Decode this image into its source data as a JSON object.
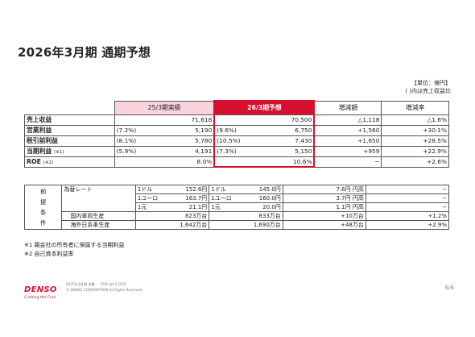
{
  "title": "2026年3月期 通期予想",
  "unit_line1": "【単位：億円】",
  "unit_line2": "( )内は売上収益比",
  "headers": {
    "actual": "25/3期実績",
    "forecast": "26/3期予想",
    "diff": "増減額",
    "rate": "増減率"
  },
  "rows": [
    {
      "label": "売上収益",
      "note": "",
      "a_pct": "",
      "a_val": "71,618",
      "f_pct": "",
      "f_val": "70,500",
      "diff": "△1,118",
      "rate": "△1.6%"
    },
    {
      "label": "営業利益",
      "note": "",
      "a_pct": "(7.2%)",
      "a_val": "5,190",
      "f_pct": "(9.6%)",
      "f_val": "6,750",
      "diff": "+1,560",
      "rate": "+30.1%"
    },
    {
      "label": "税引前利益",
      "note": "",
      "a_pct": "(8.1%)",
      "a_val": "5,780",
      "f_pct": "(10.5%)",
      "f_val": "7,430",
      "diff": "+1,650",
      "rate": "+28.5%"
    },
    {
      "label": "当期利益",
      "note": "(※1)",
      "a_pct": "(5.9%)",
      "a_val": "4,191",
      "f_pct": "(7.3%)",
      "f_val": "5,150",
      "diff": "+959",
      "rate": "+22.9%"
    },
    {
      "label": "ROE",
      "note": "(※2)",
      "a_pct": "",
      "a_val": "8.0%",
      "f_pct": "",
      "f_val": "10.6%",
      "diff": "−",
      "rate": "+2.6%"
    }
  ],
  "premise": {
    "label_chars": [
      "前",
      "提",
      "条",
      "件"
    ],
    "fx_label": "為替レート",
    "fx": [
      {
        "a_cur": "1ドル",
        "a_rate": "152.6円",
        "f_cur": "1ドル",
        "f_rate": "145.0円",
        "diff": "7.6円 円高",
        "rate": "−"
      },
      {
        "a_cur": "1ユーロ",
        "a_rate": "163.7円",
        "f_cur": "1ユーロ",
        "f_rate": "160.0円",
        "diff": "3.7円 円高",
        "rate": "−"
      },
      {
        "a_cur": "1元",
        "a_rate": "21.1円",
        "f_cur": "1元",
        "f_rate": "20.0円",
        "diff": "1.1円 円高",
        "rate": "−"
      }
    ],
    "vehicles": [
      {
        "label": "国内車両生産",
        "a_val": "823万台",
        "f_val": "833万台",
        "diff": "+10万台",
        "rate": "+1.2%"
      },
      {
        "label": "海外日系車生産",
        "a_val": "1,642万台",
        "f_val": "1,690万台",
        "diff": "+48万台",
        "rate": "+2.9%"
      }
    ]
  },
  "notes": [
    "※1 親会社の所有者に帰属する当期利益",
    "※2 自己資本利益率"
  ],
  "footer": {
    "brand": "DENSO",
    "tagline": "Crafting the Core",
    "line1": "2025年3月期 決算 ｜ 25th April 2025",
    "line2": "© DENSO CORPORATION All Rights Reserved.",
    "page": "6/8"
  },
  "colors": {
    "accent_red": "#d6112f",
    "actual_pink": "#f9d3dc"
  }
}
